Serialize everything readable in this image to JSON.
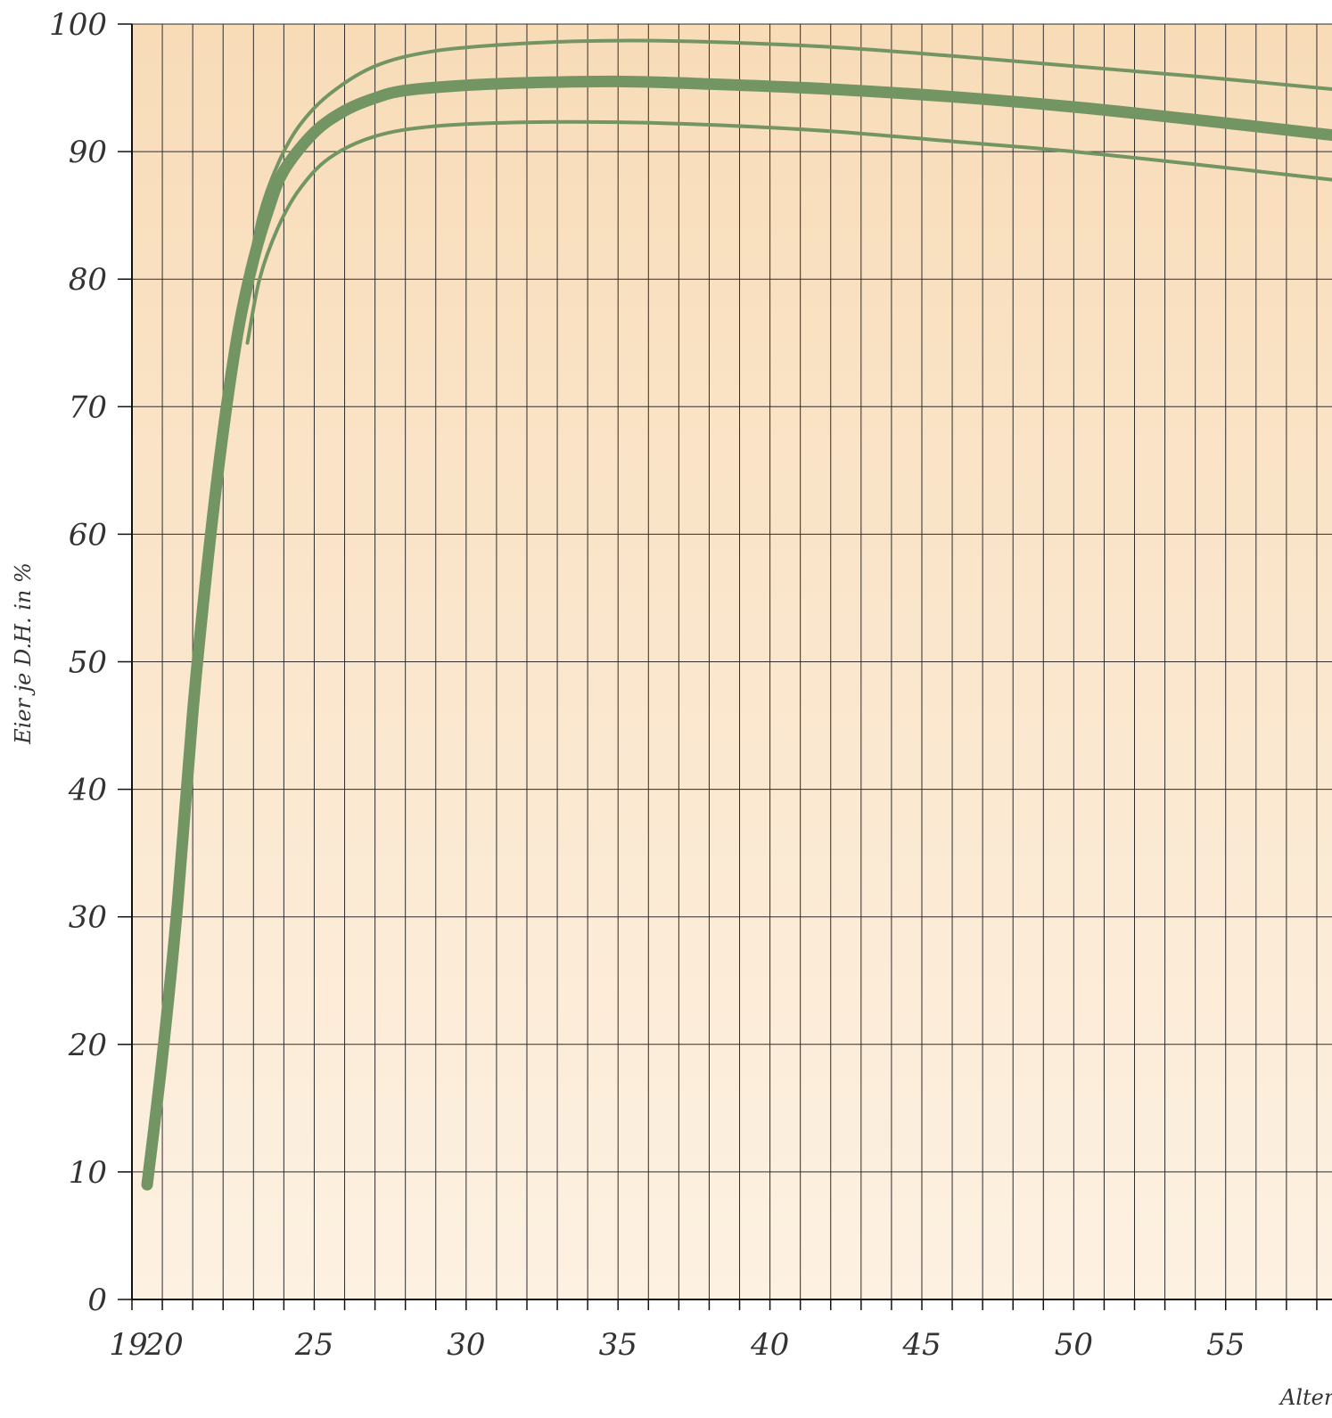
{
  "chart_data": {
    "type": "line",
    "title": "",
    "ylabel": "Eier je D.H. in %",
    "xlabel": "Alter",
    "xlim": [
      19,
      58.5
    ],
    "ylim": [
      0,
      100
    ],
    "y_ticks": [
      0,
      10,
      20,
      30,
      40,
      50,
      60,
      70,
      80,
      90,
      100
    ],
    "x_ticks": [
      19,
      20,
      25,
      30,
      35,
      40,
      45,
      50,
      55
    ],
    "grid": true,
    "legend": "none",
    "colors": {
      "background_top": "#f8dcb8",
      "background_bottom": "#fdf1e2",
      "grid": "#2d2d2d",
      "line": "#739563",
      "text": "#333333"
    },
    "series": [
      {
        "role": "upper",
        "points": [
          [
            22.8,
            80
          ],
          [
            23.2,
            85
          ],
          [
            23.8,
            89
          ],
          [
            24.5,
            92
          ],
          [
            25.5,
            94.5
          ],
          [
            27,
            96.7
          ],
          [
            29,
            97.9
          ],
          [
            32,
            98.5
          ],
          [
            35,
            98.7
          ],
          [
            38,
            98.6
          ],
          [
            42,
            98.2
          ],
          [
            46,
            97.5
          ],
          [
            50,
            96.7
          ],
          [
            54,
            95.9
          ],
          [
            58.5,
            94.9
          ]
        ]
      },
      {
        "role": "main",
        "points": [
          [
            19.5,
            9
          ],
          [
            20,
            19
          ],
          [
            20.5,
            31
          ],
          [
            21,
            46
          ],
          [
            21.5,
            58
          ],
          [
            22,
            68
          ],
          [
            22.5,
            76
          ],
          [
            23,
            81.5
          ],
          [
            23.5,
            85.5
          ],
          [
            24,
            88.5
          ],
          [
            25,
            91.5
          ],
          [
            26,
            93.2
          ],
          [
            27,
            94.2
          ],
          [
            28,
            94.8
          ],
          [
            30,
            95.2
          ],
          [
            32,
            95.4
          ],
          [
            35,
            95.5
          ],
          [
            38,
            95.3
          ],
          [
            42,
            94.9
          ],
          [
            46,
            94.3
          ],
          [
            50,
            93.5
          ],
          [
            54,
            92.5
          ],
          [
            58.5,
            91.3
          ]
        ]
      },
      {
        "role": "lower",
        "points": [
          [
            22.8,
            75
          ],
          [
            23.2,
            80
          ],
          [
            23.8,
            84
          ],
          [
            24.5,
            87
          ],
          [
            25.5,
            89.5
          ],
          [
            27,
            91.2
          ],
          [
            29,
            92
          ],
          [
            32,
            92.3
          ],
          [
            35,
            92.3
          ],
          [
            38,
            92.1
          ],
          [
            42,
            91.6
          ],
          [
            46,
            90.8
          ],
          [
            50,
            90
          ],
          [
            54,
            89
          ],
          [
            58.5,
            87.8
          ]
        ]
      }
    ]
  }
}
